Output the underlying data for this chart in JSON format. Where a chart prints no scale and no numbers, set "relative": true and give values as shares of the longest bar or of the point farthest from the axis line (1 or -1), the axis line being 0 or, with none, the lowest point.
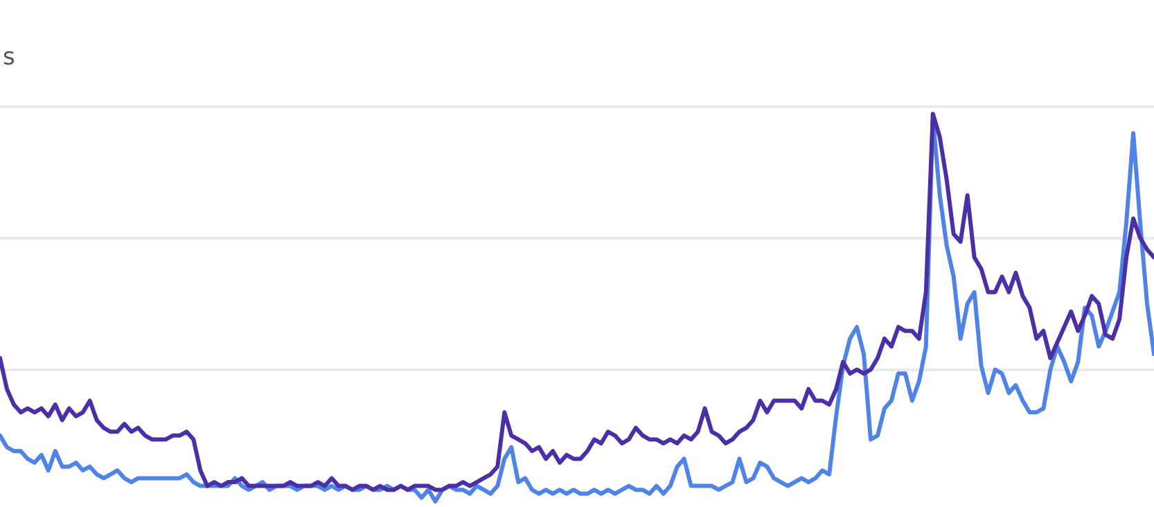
{
  "chart_data": {
    "type": "line",
    "title": "s",
    "relative": true,
    "line_style": "solid",
    "ref_lines": [
      {
        "axis": "y",
        "value": 0.34,
        "color": "#e9e9ee"
      },
      {
        "axis": "y",
        "value": 0.68,
        "color": "#e9e9ee"
      },
      {
        "axis": "y",
        "value": 1.02,
        "color": "#e9e9ee"
      }
    ],
    "categories": [
      null,
      null,
      null,
      null,
      null,
      null,
      null,
      null,
      null,
      null,
      null,
      null,
      null,
      null,
      null,
      null,
      null,
      null,
      null,
      null,
      null,
      null,
      null,
      null,
      null,
      null,
      null,
      null,
      null,
      null,
      null,
      null,
      null,
      null,
      null,
      null,
      null,
      null,
      null,
      null,
      null,
      null,
      null,
      null,
      null,
      null,
      null,
      null,
      null,
      null,
      null,
      null,
      null,
      null,
      null,
      null,
      null,
      null,
      null,
      null,
      null,
      null,
      null,
      null,
      null,
      null,
      null,
      null,
      null,
      null,
      null,
      null,
      null,
      null,
      null,
      null,
      null,
      null,
      null,
      null,
      null,
      null,
      null,
      null,
      null,
      null,
      null,
      null,
      null,
      null,
      null,
      null,
      null,
      null,
      null,
      null,
      null,
      null,
      null,
      null,
      null,
      null,
      null,
      null,
      null,
      null,
      null,
      null,
      null,
      null,
      null,
      null,
      null,
      null,
      null,
      null,
      null,
      null,
      null,
      null,
      null,
      null,
      null,
      null,
      null,
      null,
      null,
      null,
      null,
      null,
      null,
      null,
      null,
      null,
      null,
      null,
      null,
      null,
      null,
      null,
      null,
      null,
      null,
      null,
      null,
      null,
      null,
      null,
      null,
      null,
      null,
      null,
      null,
      null,
      null,
      null,
      null,
      null,
      null,
      null,
      null,
      null,
      null,
      null,
      null,
      null,
      null,
      null
    ],
    "series": [
      {
        "color": "#4b2fa6",
        "values": [
          0.37,
          0.29,
          0.25,
          0.23,
          0.24,
          0.23,
          0.24,
          0.22,
          0.25,
          0.21,
          0.24,
          0.22,
          0.23,
          0.26,
          0.21,
          0.19,
          0.18,
          0.18,
          0.2,
          0.18,
          0.19,
          0.17,
          0.16,
          0.16,
          0.16,
          0.17,
          0.17,
          0.18,
          0.16,
          0.08,
          0.04,
          0.05,
          0.04,
          0.05,
          0.05,
          0.06,
          0.04,
          0.04,
          0.04,
          0.04,
          0.04,
          0.04,
          0.05,
          0.04,
          0.04,
          0.04,
          0.05,
          0.04,
          0.06,
          0.04,
          0.04,
          0.03,
          0.04,
          0.04,
          0.03,
          0.04,
          0.03,
          0.03,
          0.04,
          0.03,
          0.04,
          0.04,
          0.04,
          0.03,
          0.03,
          0.04,
          0.04,
          0.05,
          0.04,
          0.05,
          0.06,
          0.07,
          0.09,
          0.23,
          0.17,
          0.16,
          0.15,
          0.13,
          0.14,
          0.11,
          0.13,
          0.1,
          0.12,
          0.11,
          0.11,
          0.13,
          0.16,
          0.15,
          0.18,
          0.17,
          0.15,
          0.16,
          0.19,
          0.17,
          0.16,
          0.16,
          0.15,
          0.16,
          0.15,
          0.17,
          0.16,
          0.18,
          0.24,
          0.18,
          0.17,
          0.15,
          0.16,
          0.18,
          0.19,
          0.21,
          0.26,
          0.23,
          0.26,
          0.26,
          0.26,
          0.26,
          0.24,
          0.29,
          0.26,
          0.26,
          0.25,
          0.29,
          0.36,
          0.33,
          0.34,
          0.33,
          0.34,
          0.37,
          0.42,
          0.4,
          0.45,
          0.44,
          0.44,
          0.42,
          0.54,
          1.0,
          0.94,
          0.83,
          0.69,
          0.67,
          0.79,
          0.63,
          0.6,
          0.54,
          0.54,
          0.58,
          0.54,
          0.59,
          0.53,
          0.5,
          0.42,
          0.44,
          0.37,
          0.41,
          0.45,
          0.49,
          0.44,
          0.48,
          0.53,
          0.51,
          0.43,
          0.42,
          0.47,
          0.63,
          0.73,
          0.68,
          0.65,
          0.63
        ]
      },
      {
        "color": "#4f83e6",
        "values": [
          0.17,
          0.14,
          0.13,
          0.13,
          0.11,
          0.1,
          0.12,
          0.08,
          0.13,
          0.09,
          0.09,
          0.1,
          0.08,
          0.09,
          0.07,
          0.06,
          0.07,
          0.08,
          0.06,
          0.05,
          0.06,
          0.06,
          0.06,
          0.06,
          0.06,
          0.06,
          0.06,
          0.07,
          0.05,
          0.04,
          0.04,
          0.04,
          0.04,
          0.04,
          0.06,
          0.04,
          0.03,
          0.04,
          0.05,
          0.03,
          0.04,
          0.04,
          0.04,
          0.03,
          0.04,
          0.04,
          0.04,
          0.03,
          0.04,
          0.03,
          0.04,
          0.03,
          0.03,
          0.04,
          0.03,
          0.03,
          0.04,
          0.03,
          0.04,
          0.03,
          0.03,
          0.01,
          0.03,
          0.0,
          0.03,
          0.04,
          0.03,
          0.03,
          0.02,
          0.04,
          0.03,
          0.02,
          0.04,
          0.11,
          0.14,
          0.05,
          0.06,
          0.03,
          0.02,
          0.03,
          0.02,
          0.03,
          0.02,
          0.03,
          0.02,
          0.02,
          0.03,
          0.02,
          0.03,
          0.02,
          0.03,
          0.04,
          0.03,
          0.03,
          0.02,
          0.04,
          0.02,
          0.04,
          0.09,
          0.11,
          0.04,
          0.04,
          0.04,
          0.04,
          0.03,
          0.04,
          0.05,
          0.11,
          0.05,
          0.06,
          0.1,
          0.09,
          0.06,
          0.05,
          0.04,
          0.05,
          0.06,
          0.05,
          0.06,
          0.08,
          0.07,
          0.22,
          0.35,
          0.42,
          0.45,
          0.38,
          0.16,
          0.17,
          0.24,
          0.26,
          0.33,
          0.33,
          0.26,
          0.31,
          0.4,
          0.99,
          0.79,
          0.66,
          0.58,
          0.42,
          0.51,
          0.54,
          0.35,
          0.28,
          0.34,
          0.33,
          0.28,
          0.3,
          0.26,
          0.23,
          0.23,
          0.24,
          0.34,
          0.4,
          0.36,
          0.31,
          0.36,
          0.5,
          0.48,
          0.4,
          0.44,
          0.49,
          0.54,
          0.72,
          0.95,
          0.72,
          0.51,
          0.38
        ]
      }
    ]
  }
}
